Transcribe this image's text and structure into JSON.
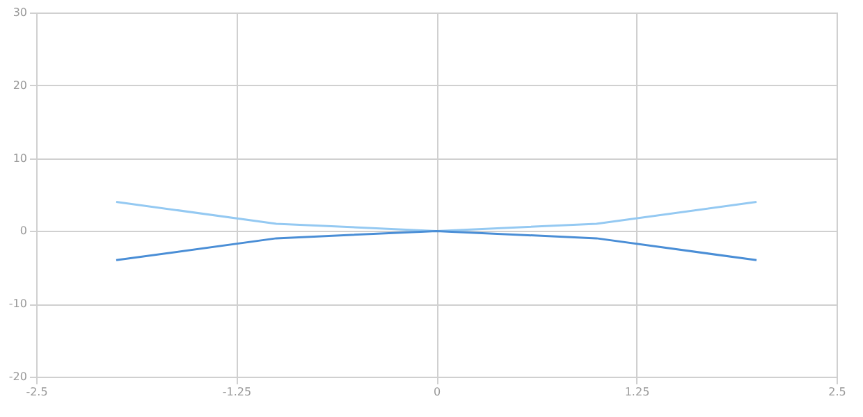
{
  "chart_data": {
    "type": "line",
    "x": [
      -2,
      -1,
      0,
      1,
      2
    ],
    "series": [
      {
        "color": "#94c9f2",
        "values": [
          4,
          1,
          0,
          1,
          4
        ]
      },
      {
        "color": "#4a8ed6",
        "values": [
          -4,
          -1,
          0,
          -1,
          -4
        ]
      }
    ],
    "xlim": [
      -2.5,
      2.5
    ],
    "xticks": [
      -2.5,
      -1.25,
      0,
      1.25,
      2.5
    ],
    "ylim": [
      -20,
      30
    ],
    "yticks": [
      -20,
      -10,
      0,
      10,
      20,
      30
    ],
    "grid": true,
    "marker": "none",
    "line_style": "solid"
  }
}
